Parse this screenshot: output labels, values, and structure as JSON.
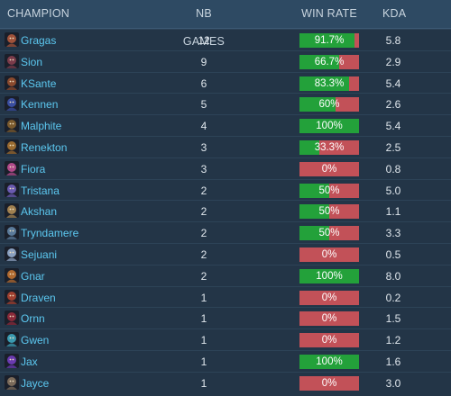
{
  "header": {
    "champion": "CHAMPION",
    "games": "NB GAMES",
    "win_rate": "WIN RATE",
    "kda": "KDA"
  },
  "colors": {
    "win": "#23a13a",
    "loss": "#c25158",
    "name": "#5cc8f0"
  },
  "rows": [
    {
      "champion": "Gragas",
      "games": "12",
      "win_rate": "91.7%",
      "win_fraction": 0.917,
      "kda": "5.8",
      "icon": "gragas-portrait-icon",
      "icon_color": "#a0523a"
    },
    {
      "champion": "Sion",
      "games": "9",
      "win_rate": "66.7%",
      "win_fraction": 0.667,
      "kda": "2.9",
      "icon": "sion-portrait-icon",
      "icon_color": "#7a3b4a"
    },
    {
      "champion": "KSante",
      "games": "6",
      "win_rate": "83.3%",
      "win_fraction": 0.833,
      "kda": "5.4",
      "icon": "ksante-portrait-icon",
      "icon_color": "#8a4a2e"
    },
    {
      "champion": "Kennen",
      "games": "5",
      "win_rate": "60%",
      "win_fraction": 0.6,
      "kda": "2.6",
      "icon": "kennen-portrait-icon",
      "icon_color": "#3a4ea0"
    },
    {
      "champion": "Malphite",
      "games": "4",
      "win_rate": "100%",
      "win_fraction": 1.0,
      "kda": "5.4",
      "icon": "malphite-portrait-icon",
      "icon_color": "#7a5a2e"
    },
    {
      "champion": "Renekton",
      "games": "3",
      "win_rate": "33.3%",
      "win_fraction": 0.333,
      "kda": "2.5",
      "icon": "renekton-portrait-icon",
      "icon_color": "#9a6a30"
    },
    {
      "champion": "Fiora",
      "games": "3",
      "win_rate": "0%",
      "win_fraction": 0.0,
      "kda": "0.8",
      "icon": "fiora-portrait-icon",
      "icon_color": "#b04a8a"
    },
    {
      "champion": "Tristana",
      "games": "2",
      "win_rate": "50%",
      "win_fraction": 0.5,
      "kda": "5.0",
      "icon": "tristana-portrait-icon",
      "icon_color": "#6a5ab0"
    },
    {
      "champion": "Akshan",
      "games": "2",
      "win_rate": "50%",
      "win_fraction": 0.5,
      "kda": "1.1",
      "icon": "akshan-portrait-icon",
      "icon_color": "#a08050"
    },
    {
      "champion": "Tryndamere",
      "games": "2",
      "win_rate": "50%",
      "win_fraction": 0.5,
      "kda": "3.3",
      "icon": "tryndamere-portrait-icon",
      "icon_color": "#5a7a9a"
    },
    {
      "champion": "Sejuani",
      "games": "2",
      "win_rate": "0%",
      "win_fraction": 0.0,
      "kda": "0.5",
      "icon": "sejuani-portrait-icon",
      "icon_color": "#8aa0c0"
    },
    {
      "champion": "Gnar",
      "games": "2",
      "win_rate": "100%",
      "win_fraction": 1.0,
      "kda": "8.0",
      "icon": "gnar-portrait-icon",
      "icon_color": "#b06a30"
    },
    {
      "champion": "Draven",
      "games": "1",
      "win_rate": "0%",
      "win_fraction": 0.0,
      "kda": "0.2",
      "icon": "draven-portrait-icon",
      "icon_color": "#a04030"
    },
    {
      "champion": "Ornn",
      "games": "1",
      "win_rate": "0%",
      "win_fraction": 0.0,
      "kda": "1.5",
      "icon": "ornn-portrait-icon",
      "icon_color": "#8a2a3a"
    },
    {
      "champion": "Gwen",
      "games": "1",
      "win_rate": "0%",
      "win_fraction": 0.0,
      "kda": "1.2",
      "icon": "gwen-portrait-icon",
      "icon_color": "#3a9ab0"
    },
    {
      "champion": "Jax",
      "games": "1",
      "win_rate": "100%",
      "win_fraction": 1.0,
      "kda": "1.6",
      "icon": "jax-portrait-icon",
      "icon_color": "#6a3ab0"
    },
    {
      "champion": "Jayce",
      "games": "1",
      "win_rate": "0%",
      "win_fraction": 0.0,
      "kda": "3.0",
      "icon": "jayce-portrait-icon",
      "icon_color": "#7a6a5a"
    }
  ]
}
